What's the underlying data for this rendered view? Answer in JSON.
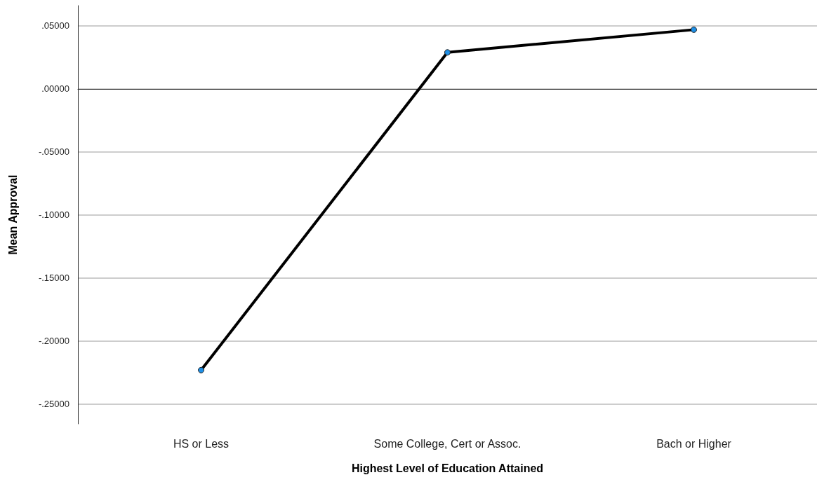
{
  "chart_data": {
    "type": "line",
    "xlabel": "Highest Level of Education Attained",
    "ylabel": "Mean Approval",
    "categories": [
      "HS or Less",
      "Some College, Cert or Assoc.",
      "Bach or Higher"
    ],
    "series": [
      {
        "color": "#000000",
        "colors": [
          "#1e8fe6",
          "#1e8fe6",
          "#1e8fe6"
        ],
        "values": [
          -0.223,
          0.029,
          0.047
        ]
      }
    ],
    "ylim": [
      -0.2656,
      0.0661
    ],
    "yticks": [
      {
        "value": -0.25,
        "label": "-.25000"
      },
      {
        "value": -0.2,
        "label": "-.20000"
      },
      {
        "value": -0.15,
        "label": "-.15000"
      },
      {
        "value": -0.1,
        "label": "-.10000"
      },
      {
        "value": -0.05,
        "label": "-.05000"
      },
      {
        "value": 0,
        "label": ".00000"
      },
      {
        "value": 0.05,
        "label": ".05000"
      }
    ],
    "grid": "y",
    "marker": "circle",
    "line_style": "solid"
  }
}
